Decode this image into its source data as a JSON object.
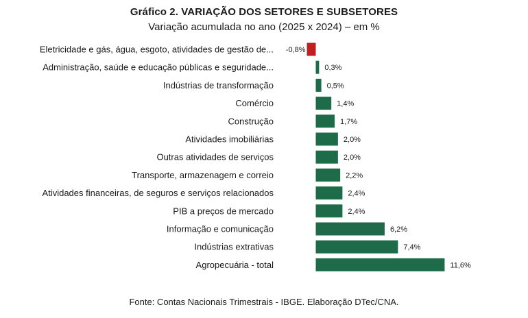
{
  "header": {
    "title": "Gráfico 2. VARIAÇÃO DOS SETORES E SUBSETORES",
    "subtitle": "Variação acumulada no ano (2025 x 2024) – em %"
  },
  "footer": {
    "source": "Fonte: Contas Nacionais Trimestrais - IBGE. Elaboração DTec/CNA."
  },
  "colors": {
    "positive": "#1e6b4a",
    "negative": "#c0201f"
  },
  "chart_data": {
    "type": "bar",
    "orientation": "horizontal",
    "title": "Gráfico 2. VARIAÇÃO DOS SETORES E SUBSETORES",
    "subtitle": "Variação acumulada no ano (2025 x 2024) – em %",
    "categories": [
      "Eletricidade e gás, água, esgoto, atividades de gestão de...",
      "Administração, saúde e educação públicas e seguridade...",
      "Indústrias de transformação",
      "Comércio",
      "Construção",
      "Atividades imobiliárias",
      "Outras atividades de serviços",
      "Transporte, armazenagem e correio",
      "Atividades financeiras, de seguros e serviços relacionados",
      "PIB a preços de mercado",
      "Informação e comunicação",
      "Indústrias extrativas",
      "Agropecuária - total"
    ],
    "values": [
      -0.8,
      0.3,
      0.5,
      1.4,
      1.7,
      2.0,
      2.0,
      2.2,
      2.4,
      2.4,
      6.2,
      7.4,
      11.6
    ],
    "value_labels": [
      "-0,8%",
      "0,3%",
      "0,5%",
      "1,4%",
      "1,7%",
      "2,0%",
      "2,0%",
      "2,2%",
      "2,4%",
      "2,4%",
      "6,2%",
      "7,4%",
      "11,6%"
    ],
    "xlim": [
      -0.8,
      11.6
    ],
    "grid": false,
    "legend": "none"
  }
}
